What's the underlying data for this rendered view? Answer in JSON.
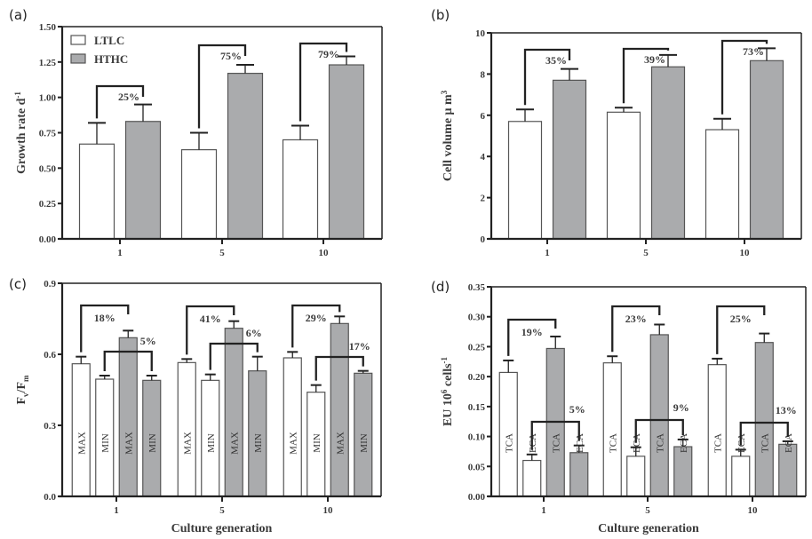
{
  "colors": {
    "ltlc": "#ffffff",
    "hthc": "#aaabad",
    "axis": "#222222",
    "text": "#3a3a3a"
  },
  "chart_data": [
    {
      "panel": "(a)",
      "type": "bar",
      "title": "",
      "xlabel": "",
      "ylabel": "Growth rate d",
      "ylabel_sup": "-1",
      "ylim": [
        0,
        1.5
      ],
      "yticks": [
        0,
        0.25,
        0.5,
        0.75,
        1.0,
        1.25,
        1.5
      ],
      "ytick_labels": [
        "0.00",
        "0.25",
        "0.50",
        "0.75",
        "1.00",
        "1.25",
        "1.50"
      ],
      "categories": [
        "1",
        "5",
        "10"
      ],
      "legend": {
        "position": "top-left",
        "entries": [
          "LTLC",
          "HTHC"
        ]
      },
      "series": [
        {
          "name": "LTLC",
          "color": "#ffffff",
          "values": [
            0.67,
            0.63,
            0.7
          ],
          "errors": [
            0.15,
            0.12,
            0.1
          ]
        },
        {
          "name": "HTHC",
          "color": "#aaabad",
          "values": [
            0.83,
            1.17,
            1.23
          ],
          "errors": [
            0.12,
            0.06,
            0.06
          ]
        }
      ],
      "annotations": [
        {
          "from_series": 0,
          "to_series": 1,
          "category": 0,
          "text": "25%"
        },
        {
          "from_series": 0,
          "to_series": 1,
          "category": 1,
          "text": "75%"
        },
        {
          "from_series": 0,
          "to_series": 1,
          "category": 2,
          "text": "79%"
        }
      ]
    },
    {
      "panel": "(b)",
      "type": "bar",
      "title": "",
      "xlabel": "",
      "ylabel": "Cell volume μ m",
      "ylabel_sup": "3",
      "ylim": [
        0,
        10
      ],
      "yticks": [
        0,
        2,
        4,
        6,
        8,
        10
      ],
      "ytick_labels": [
        "0",
        "2",
        "4",
        "6",
        "8",
        "10"
      ],
      "categories": [
        "1",
        "5",
        "10"
      ],
      "series": [
        {
          "name": "LTLC",
          "color": "#ffffff",
          "values": [
            5.7,
            6.15,
            5.3
          ],
          "errors": [
            0.58,
            0.22,
            0.53
          ]
        },
        {
          "name": "HTHC",
          "color": "#aaabad",
          "values": [
            7.7,
            8.35,
            8.65
          ],
          "errors": [
            0.55,
            0.58,
            0.6
          ]
        }
      ],
      "annotations": [
        {
          "from_series": 0,
          "to_series": 1,
          "category": 0,
          "text": "35%"
        },
        {
          "from_series": 0,
          "to_series": 1,
          "category": 1,
          "text": "39%"
        },
        {
          "from_series": 0,
          "to_series": 1,
          "category": 2,
          "text": "73%"
        }
      ]
    },
    {
      "panel": "(c)",
      "type": "bar",
      "title": "",
      "xlabel": "Culture generation",
      "ylabel": "Fv/Fm",
      "ylabel_parts": [
        "F",
        "v",
        "/F",
        "m"
      ],
      "ylim": [
        0,
        0.9
      ],
      "yticks": [
        0,
        0.3,
        0.6,
        0.9
      ],
      "ytick_labels": [
        "0.0",
        "0.3",
        "0.6",
        "0.9"
      ],
      "categories": [
        "1",
        "5",
        "10"
      ],
      "series": [
        {
          "name": "LTLC MAX",
          "color": "#ffffff",
          "bar_label": "MAX",
          "values": [
            0.56,
            0.565,
            0.585
          ],
          "errors": [
            0.03,
            0.015,
            0.025
          ]
        },
        {
          "name": "LTLC MIN",
          "color": "#ffffff",
          "bar_label": "MIN",
          "values": [
            0.495,
            0.49,
            0.44
          ],
          "errors": [
            0.015,
            0.025,
            0.03
          ]
        },
        {
          "name": "HTHC MAX",
          "color": "#aaabad",
          "bar_label": "MAX",
          "values": [
            0.67,
            0.71,
            0.73
          ],
          "errors": [
            0.03,
            0.03,
            0.03
          ]
        },
        {
          "name": "HTHC MIN",
          "color": "#aaabad",
          "bar_label": "MIN",
          "values": [
            0.49,
            0.53,
            0.52
          ],
          "errors": [
            0.02,
            0.06,
            0.01
          ]
        }
      ],
      "annotations": [
        {
          "from_series": 0,
          "to_series": 2,
          "category": 0,
          "text": "18%",
          "level": "upper"
        },
        {
          "from_series": 1,
          "to_series": 3,
          "category": 0,
          "text": "5%",
          "level": "lower"
        },
        {
          "from_series": 0,
          "to_series": 2,
          "category": 1,
          "text": "41%",
          "level": "upper"
        },
        {
          "from_series": 1,
          "to_series": 3,
          "category": 1,
          "text": "6%",
          "level": "lower"
        },
        {
          "from_series": 0,
          "to_series": 2,
          "category": 2,
          "text": "29%",
          "level": "upper"
        },
        {
          "from_series": 1,
          "to_series": 3,
          "category": 2,
          "text": "17%",
          "level": "lower"
        }
      ]
    },
    {
      "panel": "(d)",
      "type": "bar",
      "title": "",
      "xlabel": "Culture generation",
      "ylabel": "EU 10",
      "ylabel_sup": "6",
      "ylabel_tail": " cells",
      "ylabel_tail_sup": "-1",
      "ylim": [
        0,
        0.35
      ],
      "yticks": [
        0,
        0.05,
        0.1,
        0.15,
        0.2,
        0.25,
        0.3,
        0.35
      ],
      "ytick_labels": [
        "0.00",
        "0.05",
        "0.10",
        "0.15",
        "0.20",
        "0.25",
        "0.30",
        "0.35"
      ],
      "categories": [
        "1",
        "5",
        "10"
      ],
      "series": [
        {
          "name": "LTLC TCA",
          "color": "#ffffff",
          "bar_label": "TCA",
          "values": [
            0.207,
            0.223,
            0.22
          ],
          "errors": [
            0.02,
            0.011,
            0.01
          ]
        },
        {
          "name": "LTLC ECA",
          "color": "#ffffff",
          "bar_label": "ECA",
          "values": [
            0.06,
            0.067,
            0.067
          ],
          "errors": [
            0.01,
            0.015,
            0.011
          ]
        },
        {
          "name": "HTHC TCA",
          "color": "#aaabad",
          "bar_label": "TCA",
          "values": [
            0.247,
            0.27,
            0.257
          ],
          "errors": [
            0.02,
            0.017,
            0.015
          ]
        },
        {
          "name": "HTHC ECA",
          "color": "#aaabad",
          "bar_label": "ECA",
          "values": [
            0.073,
            0.083,
            0.087
          ],
          "errors": [
            0.012,
            0.012,
            0.005
          ]
        }
      ],
      "annotations": [
        {
          "from_series": 0,
          "to_series": 2,
          "category": 0,
          "text": "19%",
          "level": "upper"
        },
        {
          "from_series": 1,
          "to_series": 3,
          "category": 0,
          "text": "5%",
          "level": "lower"
        },
        {
          "from_series": 0,
          "to_series": 2,
          "category": 1,
          "text": "23%",
          "level": "upper"
        },
        {
          "from_series": 1,
          "to_series": 3,
          "category": 1,
          "text": "9%",
          "level": "lower"
        },
        {
          "from_series": 0,
          "to_series": 2,
          "category": 2,
          "text": "25%",
          "level": "upper"
        },
        {
          "from_series": 1,
          "to_series": 3,
          "category": 2,
          "text": "13%",
          "level": "lower"
        }
      ]
    }
  ]
}
